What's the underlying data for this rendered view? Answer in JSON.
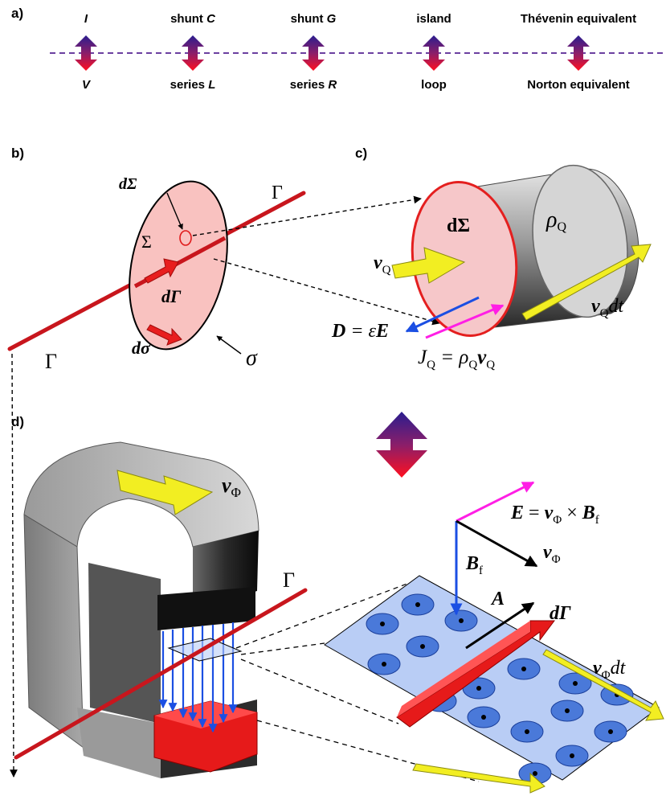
{
  "panels": {
    "a": "a)",
    "b": "b)",
    "c": "c)",
    "d": "d)"
  },
  "dualities": [
    {
      "top": "I",
      "top_italic": true,
      "bottom": "V",
      "bottom_italic": true
    },
    {
      "top_prefix": "shunt ",
      "top_var": "C",
      "bottom_prefix": "series ",
      "bottom_var": "L"
    },
    {
      "top_prefix": "shunt ",
      "top_var": "G",
      "bottom_prefix": "series ",
      "bottom_var": "R"
    },
    {
      "top": "island",
      "bottom": "loop"
    },
    {
      "top": "Thévenin equivalent",
      "bottom": "Norton equivalent"
    }
  ],
  "panel_b": {
    "gamma_top": "Γ",
    "gamma_bottom": "Γ",
    "d_sigma_cap": "dΣ",
    "sigma_cap": "Σ",
    "d_gamma": "dΓ",
    "d_sigma": "dσ",
    "sigma": "σ"
  },
  "panel_c": {
    "d_sigma_cap": "dΣ",
    "rho_q": "ρ",
    "rho_q_sub": "Q",
    "v_q": "v",
    "v_q_sub": "Q",
    "v_q_dt": "v",
    "v_q_dt_sub": "Q",
    "v_q_dt_tail": "dt",
    "d_eq_lhs": "D",
    "d_eq_mid": " = ε",
    "d_eq_rhs": "E",
    "j_eq_lhs": "J",
    "j_eq_lhs_sub": "Q",
    "j_eq_mid": " = ρ",
    "j_eq_mid_sub": "Q",
    "j_eq_rhs": "v",
    "j_eq_rhs_sub": "Q"
  },
  "panel_d": {
    "v_phi": "v",
    "v_phi_sub": "Φ",
    "gamma": "Γ",
    "e_eq_lhs": "E",
    "e_eq_mid": " = ",
    "e_eq_v": "v",
    "e_eq_v_sub": "Φ",
    "e_eq_times": " × ",
    "e_eq_b": "B",
    "e_eq_b_sub": "f",
    "v_phi2": "v",
    "v_phi2_sub": "Φ",
    "b_f": "B",
    "b_f_sub": "f",
    "a_vec": "A",
    "d_gamma": "dΓ",
    "v_phi_dt": "v",
    "v_phi_dt_sub": "Φ",
    "v_phi_dt_tail": "dt"
  },
  "colors": {
    "rod": "#c8161d",
    "disk_fill": "#f9c2c0",
    "cylinder_face": "#f6c7c9",
    "cylinder_body": "#9a9a9a",
    "yellow_arrow": "#f2ee22",
    "blue": "#1b4fe3",
    "magenta": "#ff1ee5",
    "plate": "#b9cdf5",
    "dot_fill": "#4a79d9",
    "duality_top": "#2c1b8f",
    "duality_bottom": "#ff1020",
    "dashed_axis": "#6b3fa0"
  }
}
